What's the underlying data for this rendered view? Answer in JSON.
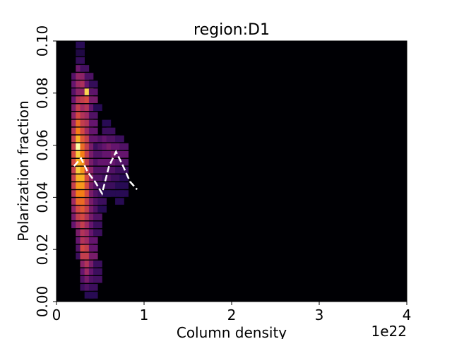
{
  "chart_data": {
    "type": "heatmap",
    "title": "region:D1",
    "xlabel": "Column density",
    "ylabel": "Polarization fraction",
    "x_offset_label": "1e22",
    "xlim": [
      0,
      4
    ],
    "ylim": [
      0,
      0.1
    ],
    "x_ticks": [
      0,
      1,
      2,
      3,
      4
    ],
    "x_tick_labels": [
      "0",
      "1",
      "2",
      "3",
      "4"
    ],
    "y_ticks": [
      0,
      0.02,
      0.04,
      0.06,
      0.08,
      0.1
    ],
    "y_tick_labels": [
      "0.00",
      "0.02",
      "0.04",
      "0.06",
      "0.08",
      "0.10"
    ],
    "colormap": "inferno",
    "grid": false,
    "histogram_2d": {
      "x_bins": 40,
      "y_bins": 40,
      "cells": [
        [
          2.7e+21,
          0.0985,
          0.15
        ],
        [
          2.7e+21,
          0.0955,
          0.12
        ],
        [
          2.7e+21,
          0.0925,
          0.18
        ],
        [
          2.7e+21,
          0.0895,
          0.32
        ],
        [
          3.2e+21,
          0.0895,
          0.22
        ],
        [
          2.2e+21,
          0.0865,
          0.26
        ],
        [
          2.7e+21,
          0.0865,
          0.42
        ],
        [
          3.2e+21,
          0.0865,
          0.4
        ],
        [
          3.7e+21,
          0.0865,
          0.24
        ],
        [
          2.2e+21,
          0.0835,
          0.3
        ],
        [
          2.7e+21,
          0.0835,
          0.44
        ],
        [
          3.2e+21,
          0.0835,
          0.48
        ],
        [
          3.7e+21,
          0.0835,
          0.3
        ],
        [
          4.2e+21,
          0.0835,
          0.18
        ],
        [
          2.2e+21,
          0.0805,
          0.26
        ],
        [
          2.7e+21,
          0.0805,
          0.4
        ],
        [
          3.7e+21,
          0.0805,
          0.92
        ],
        [
          4.2e+21,
          0.0805,
          0.28
        ],
        [
          2.2e+21,
          0.0775,
          0.3
        ],
        [
          2.7e+21,
          0.0775,
          0.5
        ],
        [
          3.2e+21,
          0.0775,
          0.55
        ],
        [
          3.7e+21,
          0.0775,
          0.6
        ],
        [
          4.2e+21,
          0.0775,
          0.35
        ],
        [
          2.2e+21,
          0.0745,
          0.35
        ],
        [
          2.7e+21,
          0.0745,
          0.55
        ],
        [
          3.2e+21,
          0.0745,
          0.45
        ],
        [
          3.7e+21,
          0.0745,
          0.5
        ],
        [
          4.2e+21,
          0.0745,
          0.3
        ],
        [
          4.7e+21,
          0.0745,
          0.15
        ],
        [
          2.2e+21,
          0.0715,
          0.4
        ],
        [
          2.7e+21,
          0.0715,
          0.6
        ],
        [
          3.2e+21,
          0.0715,
          0.5
        ],
        [
          3.7e+21,
          0.0715,
          0.45
        ],
        [
          4.2e+21,
          0.0715,
          0.25
        ],
        [
          2.2e+21,
          0.0685,
          0.45
        ],
        [
          2.7e+21,
          0.0685,
          0.7
        ],
        [
          3.2e+21,
          0.0685,
          0.55
        ],
        [
          3.7e+21,
          0.0685,
          0.5
        ],
        [
          4.2e+21,
          0.0685,
          0.3
        ],
        [
          5.7e+21,
          0.0685,
          0.15
        ],
        [
          2.2e+21,
          0.0655,
          0.5
        ],
        [
          2.7e+21,
          0.0655,
          0.75
        ],
        [
          3.2e+21,
          0.0655,
          0.6
        ],
        [
          3.7e+21,
          0.0655,
          0.45
        ],
        [
          4.2e+21,
          0.0655,
          0.3
        ],
        [
          5.7e+21,
          0.0655,
          0.2
        ],
        [
          6.2e+21,
          0.0655,
          0.2
        ],
        [
          2.2e+21,
          0.0625,
          0.55
        ],
        [
          2.7e+21,
          0.0625,
          0.85
        ],
        [
          3.2e+21,
          0.0625,
          0.65
        ],
        [
          3.7e+21,
          0.0625,
          0.55
        ],
        [
          4.2e+21,
          0.0625,
          0.3
        ],
        [
          5.2e+21,
          0.0625,
          0.25
        ],
        [
          5.7e+21,
          0.0625,
          0.3
        ],
        [
          6.2e+21,
          0.0625,
          0.25
        ],
        [
          6.7e+21,
          0.0625,
          0.25
        ],
        [
          7.2e+21,
          0.0625,
          0.2
        ],
        [
          2.2e+21,
          0.0595,
          0.55
        ],
        [
          2.7e+21,
          0.0595,
          1.0
        ],
        [
          3.2e+21,
          0.0595,
          0.7
        ],
        [
          3.7e+21,
          0.0595,
          0.55
        ],
        [
          4.2e+21,
          0.0595,
          0.35
        ],
        [
          4.7e+21,
          0.0595,
          0.2
        ],
        [
          5.2e+21,
          0.0595,
          0.25
        ],
        [
          5.7e+21,
          0.0595,
          0.3
        ],
        [
          6.2e+21,
          0.0595,
          0.35
        ],
        [
          6.7e+21,
          0.0595,
          0.3
        ],
        [
          7.2e+21,
          0.0595,
          0.3
        ],
        [
          7.7e+21,
          0.0595,
          0.25
        ],
        [
          2.2e+21,
          0.0565,
          0.6
        ],
        [
          2.7e+21,
          0.0565,
          0.9
        ],
        [
          3.2e+21,
          0.0565,
          0.75
        ],
        [
          3.7e+21,
          0.0565,
          0.55
        ],
        [
          4.2e+21,
          0.0565,
          0.35
        ],
        [
          4.7e+21,
          0.0565,
          0.25
        ],
        [
          5.2e+21,
          0.0565,
          0.25
        ],
        [
          5.7e+21,
          0.0565,
          0.3
        ],
        [
          6.2e+21,
          0.0565,
          0.3
        ],
        [
          6.7e+21,
          0.0565,
          0.35
        ],
        [
          7.2e+21,
          0.0565,
          0.3
        ],
        [
          7.7e+21,
          0.0565,
          0.3
        ],
        [
          2.2e+21,
          0.0535,
          0.6
        ],
        [
          2.7e+21,
          0.0535,
          0.85
        ],
        [
          3.2e+21,
          0.0535,
          0.8
        ],
        [
          3.7e+21,
          0.0535,
          0.55
        ],
        [
          4.2e+21,
          0.0535,
          0.35
        ],
        [
          4.7e+21,
          0.0535,
          0.25
        ],
        [
          5.2e+21,
          0.0535,
          0.3
        ],
        [
          5.7e+21,
          0.0535,
          0.3
        ],
        [
          6.2e+21,
          0.0535,
          0.3
        ],
        [
          6.7e+21,
          0.0535,
          0.3
        ],
        [
          7.2e+21,
          0.0535,
          0.25
        ],
        [
          7.7e+21,
          0.0535,
          0.25
        ],
        [
          2.2e+21,
          0.0505,
          0.55
        ],
        [
          2.7e+21,
          0.0505,
          0.9
        ],
        [
          3.2e+21,
          0.0505,
          0.8
        ],
        [
          3.7e+21,
          0.0505,
          0.55
        ],
        [
          4.2e+21,
          0.0505,
          0.4
        ],
        [
          4.7e+21,
          0.0505,
          0.25
        ],
        [
          5.2e+21,
          0.0505,
          0.25
        ],
        [
          5.7e+21,
          0.0505,
          0.25
        ],
        [
          6.2e+21,
          0.0505,
          0.25
        ],
        [
          6.7e+21,
          0.0505,
          0.25
        ],
        [
          7.2e+21,
          0.0505,
          0.2
        ],
        [
          7.7e+21,
          0.0505,
          0.2
        ],
        [
          2.2e+21,
          0.0475,
          0.55
        ],
        [
          2.7e+21,
          0.0475,
          0.85
        ],
        [
          3.2e+21,
          0.0475,
          0.85
        ],
        [
          3.7e+21,
          0.0475,
          0.6
        ],
        [
          4.2e+21,
          0.0475,
          0.4
        ],
        [
          4.7e+21,
          0.0475,
          0.25
        ],
        [
          5.2e+21,
          0.0475,
          0.25
        ],
        [
          5.7e+21,
          0.0475,
          0.2
        ],
        [
          6.2e+21,
          0.0475,
          0.25
        ],
        [
          6.7e+21,
          0.0475,
          0.2
        ],
        [
          7.2e+21,
          0.0475,
          0.2
        ],
        [
          7.7e+21,
          0.0475,
          0.15
        ],
        [
          2.2e+21,
          0.0445,
          0.55
        ],
        [
          2.7e+21,
          0.0445,
          0.8
        ],
        [
          3.2e+21,
          0.0445,
          0.8
        ],
        [
          3.7e+21,
          0.0445,
          0.6
        ],
        [
          4.2e+21,
          0.0445,
          0.35
        ],
        [
          4.7e+21,
          0.0445,
          0.25
        ],
        [
          5.2e+21,
          0.0445,
          0.2
        ],
        [
          5.7e+21,
          0.0445,
          0.2
        ],
        [
          6.2e+21,
          0.0445,
          0.2
        ],
        [
          6.7e+21,
          0.0445,
          0.2
        ],
        [
          7.2e+21,
          0.0445,
          0.15
        ],
        [
          7.7e+21,
          0.0445,
          0.15
        ],
        [
          2.2e+21,
          0.0415,
          0.5
        ],
        [
          2.7e+21,
          0.0415,
          0.75
        ],
        [
          3.2e+21,
          0.0415,
          0.75
        ],
        [
          3.7e+21,
          0.0415,
          0.6
        ],
        [
          4.2e+21,
          0.0415,
          0.35
        ],
        [
          4.7e+21,
          0.0415,
          0.25
        ],
        [
          5.2e+21,
          0.0415,
          0.2
        ],
        [
          5.7e+21,
          0.0415,
          0.15
        ],
        [
          6.2e+21,
          0.0415,
          0.15
        ],
        [
          7.2e+21,
          0.0415,
          0.15
        ],
        [
          7.7e+21,
          0.0415,
          0.15
        ],
        [
          2.2e+21,
          0.0385,
          0.45
        ],
        [
          2.7e+21,
          0.0385,
          0.7
        ],
        [
          3.2e+21,
          0.0385,
          0.7
        ],
        [
          3.7e+21,
          0.0385,
          0.55
        ],
        [
          4.2e+21,
          0.0385,
          0.35
        ],
        [
          4.7e+21,
          0.0385,
          0.25
        ],
        [
          5.2e+21,
          0.0385,
          0.2
        ],
        [
          7.2e+21,
          0.0385,
          0.15
        ],
        [
          2.2e+21,
          0.0355,
          0.4
        ],
        [
          2.7e+21,
          0.0355,
          0.6
        ],
        [
          3.2e+21,
          0.0355,
          0.65
        ],
        [
          3.7e+21,
          0.0355,
          0.55
        ],
        [
          4.2e+21,
          0.0355,
          0.35
        ],
        [
          4.7e+21,
          0.0355,
          0.25
        ],
        [
          5.2e+21,
          0.0355,
          0.15
        ],
        [
          2.2e+21,
          0.0325,
          0.35
        ],
        [
          2.7e+21,
          0.0325,
          0.55
        ],
        [
          3.2e+21,
          0.0325,
          0.6
        ],
        [
          3.7e+21,
          0.0325,
          0.5
        ],
        [
          4.2e+21,
          0.0325,
          0.35
        ],
        [
          4.7e+21,
          0.0325,
          0.25
        ],
        [
          2.2e+21,
          0.0295,
          0.3
        ],
        [
          2.7e+21,
          0.0295,
          0.45
        ],
        [
          3.2e+21,
          0.0295,
          0.55
        ],
        [
          3.7e+21,
          0.0295,
          0.45
        ],
        [
          4.2e+21,
          0.0295,
          0.3
        ],
        [
          4.7e+21,
          0.0295,
          0.2
        ],
        [
          2.7e+21,
          0.0265,
          0.35
        ],
        [
          3.2e+21,
          0.0265,
          0.5
        ],
        [
          3.7e+21,
          0.0265,
          0.45
        ],
        [
          4.2e+21,
          0.0265,
          0.3
        ],
        [
          4.7e+21,
          0.0265,
          0.2
        ],
        [
          2.7e+21,
          0.0235,
          0.3
        ],
        [
          3.2e+21,
          0.0235,
          0.5
        ],
        [
          3.7e+21,
          0.0235,
          0.45
        ],
        [
          4.2e+21,
          0.0235,
          0.3
        ],
        [
          2.7e+21,
          0.0205,
          0.25
        ],
        [
          3.2e+21,
          0.0205,
          0.6
        ],
        [
          3.7e+21,
          0.0205,
          0.55
        ],
        [
          4.2e+21,
          0.0205,
          0.3
        ],
        [
          2.7e+21,
          0.0175,
          0.2
        ],
        [
          3.2e+21,
          0.0175,
          0.55
        ],
        [
          3.7e+21,
          0.0175,
          0.55
        ],
        [
          4.2e+21,
          0.0175,
          0.35
        ],
        [
          3.2e+21,
          0.0145,
          0.4
        ],
        [
          3.7e+21,
          0.0145,
          0.5
        ],
        [
          4.2e+21,
          0.0145,
          0.35
        ],
        [
          4.7e+21,
          0.0145,
          0.2
        ],
        [
          3.2e+21,
          0.0115,
          0.3
        ],
        [
          3.7e+21,
          0.0115,
          0.45
        ],
        [
          4.2e+21,
          0.0115,
          0.3
        ],
        [
          4.7e+21,
          0.0115,
          0.2
        ],
        [
          3.2e+21,
          0.0085,
          0.25
        ],
        [
          3.7e+21,
          0.0085,
          0.35
        ],
        [
          4.2e+21,
          0.0085,
          0.25
        ],
        [
          4.7e+21,
          0.0085,
          0.22
        ],
        [
          3.2e+21,
          0.0055,
          0.2
        ],
        [
          3.7e+21,
          0.0055,
          0.25
        ],
        [
          4.2e+21,
          0.0055,
          0.2
        ],
        [
          3.7e+21,
          0.0025,
          0.15
        ],
        [
          4.2e+21,
          0.0025,
          0.15
        ]
      ]
    },
    "series": [
      {
        "style": "dashed",
        "color": "#ffffff",
        "x": [
          2e+21,
          2.8e+21,
          3.6e+21,
          4.4e+21,
          5.2e+21,
          6e+21,
          6.8e+21,
          7.6e+21,
          8.4e+21,
          9.2e+21
        ],
        "y": [
          0.052,
          0.055,
          0.0495,
          0.046,
          0.0415,
          0.052,
          0.0575,
          0.052,
          0.046,
          0.043
        ]
      }
    ]
  }
}
